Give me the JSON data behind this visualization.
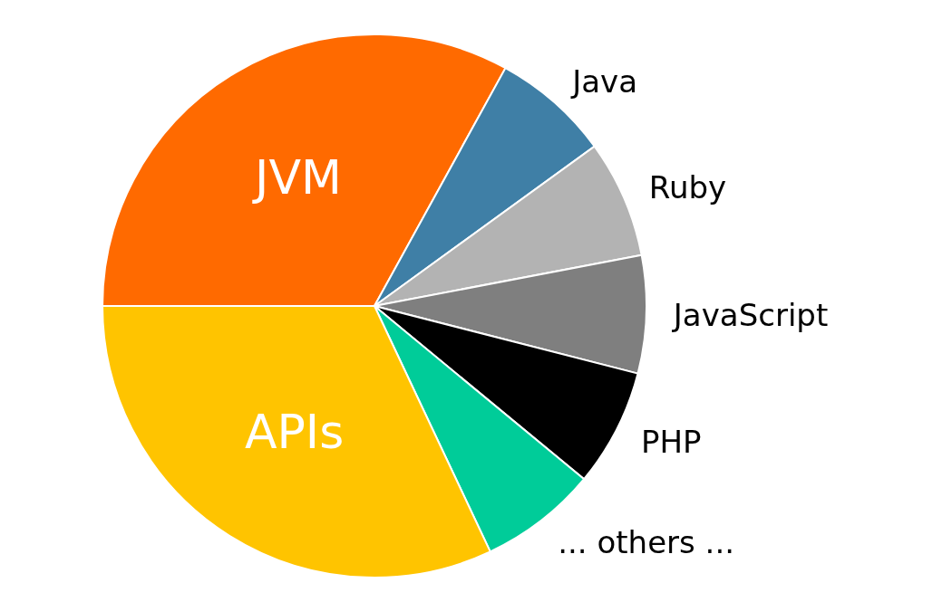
{
  "chart_data": {
    "type": "pie",
    "categories": [
      "JVM",
      "Java",
      "Ruby",
      "JavaScript",
      "PHP",
      "... others ...",
      "APIs"
    ],
    "values": [
      33,
      7,
      7,
      7,
      7,
      7,
      32
    ],
    "colors": [
      "#ff6a00",
      "#3f7fa6",
      "#b3b3b3",
      "#7f7f7f",
      "#000000",
      "#00cc99",
      "#ffc400"
    ]
  }
}
